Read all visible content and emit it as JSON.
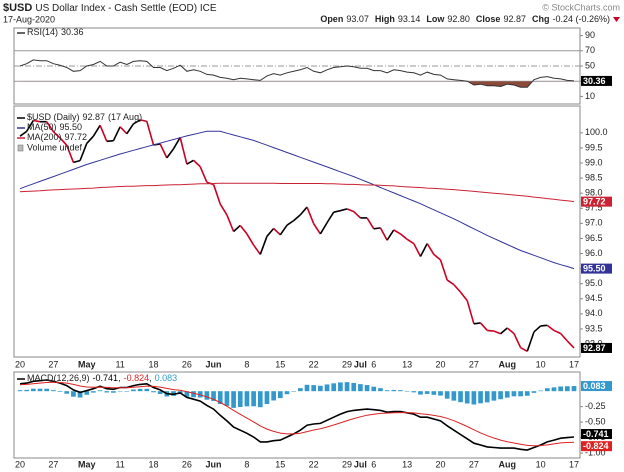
{
  "header": {
    "symbol": "$USD",
    "name": "US Dollar Index - Cash Settle (EOD) ICE",
    "date": "17-Aug-2020",
    "watermark": "© StockCharts.com",
    "quote": [
      {
        "label": "Open",
        "value": "93.07"
      },
      {
        "label": "High",
        "value": "93.14"
      },
      {
        "label": "Low",
        "value": "92.80"
      },
      {
        "label": "Close",
        "value": "92.87"
      },
      {
        "label": "Chg",
        "value": "-0.24 (-0.26%)"
      }
    ]
  },
  "chart_data": [
    {
      "type": "line",
      "ylim": [
        0,
        100
      ],
      "yticks": [
        10,
        30,
        50,
        70,
        90
      ],
      "levels": [
        {
          "value": 70
        },
        {
          "value": 50,
          "style": "dashdot"
        },
        {
          "value": 30
        }
      ],
      "oversold_color": "#8b4a3a",
      "series": [
        {
          "name": "RSI(14)",
          "color": "#333333",
          "values": [
            50,
            53,
            58,
            57,
            57,
            53,
            51,
            48,
            43,
            44,
            50,
            52,
            56,
            50,
            50,
            55,
            52,
            56,
            57,
            56,
            48,
            48,
            44,
            47,
            51,
            43,
            45,
            43,
            39,
            38,
            35,
            34,
            32,
            34,
            33,
            32,
            31,
            37,
            40,
            38,
            41,
            43,
            45,
            48,
            43,
            41,
            45,
            48,
            49,
            50,
            49,
            47,
            47,
            44,
            44,
            41,
            45,
            44,
            42,
            41,
            38,
            42,
            39,
            38,
            33,
            32,
            31,
            30,
            25,
            26,
            24,
            24,
            23,
            26,
            25,
            22,
            22,
            32,
            35,
            36,
            34,
            33,
            31,
            30.36
          ]
        }
      ]
    },
    {
      "type": "price",
      "ylim": [
        92.57,
        100.89
      ],
      "yticks": [
        {
          "value": 93,
          "label": "93.0"
        },
        93.5,
        {
          "value": 94,
          "label": "94.0"
        },
        94.5,
        {
          "value": 95,
          "label": "95.0"
        },
        95.5,
        {
          "value": 96,
          "label": "96.0"
        },
        96.5,
        {
          "value": 97,
          "label": "97.0"
        },
        97.5,
        {
          "value": 98,
          "label": "98.0"
        },
        98.5,
        {
          "value": 99,
          "label": "99.0"
        },
        99.5,
        {
          "value": 100,
          "label": "100.0"
        }
      ],
      "categories": [
        "20",
        null,
        null,
        null,
        null,
        "27",
        null,
        null,
        null,
        null,
        "May",
        null,
        null,
        null,
        null,
        "11",
        null,
        null,
        null,
        null,
        "18",
        null,
        null,
        null,
        null,
        "26",
        null,
        null,
        null,
        "Jun",
        null,
        null,
        null,
        null,
        "8",
        null,
        null,
        null,
        null,
        "15",
        null,
        null,
        null,
        null,
        "22",
        null,
        null,
        null,
        null,
        "29",
        null,
        "Jul",
        null,
        "6",
        null,
        null,
        null,
        null,
        "13",
        null,
        null,
        null,
        null,
        "20",
        null,
        null,
        null,
        null,
        "27",
        null,
        null,
        null,
        null,
        "Aug",
        null,
        null,
        null,
        null,
        "10",
        null,
        null,
        null,
        null,
        "17"
      ],
      "legend_note": "Volume undef",
      "series": [
        {
          "name": "$USD (Daily)",
          "legend_date": "(17 Aug)",
          "color": "#000000",
          "color_down": "#cc0022",
          "values": [
            99.89,
            100.05,
            100.41,
            100.37,
            100.37,
            100.04,
            99.83,
            99.59,
            99.02,
            99.08,
            99.65,
            99.89,
            100.25,
            99.72,
            99.74,
            100.2,
            99.97,
            100.3,
            100.43,
            100.38,
            99.6,
            99.63,
            99.17,
            99.47,
            99.85,
            98.96,
            99.09,
            98.88,
            98.36,
            98.29,
            97.64,
            97.28,
            96.73,
            96.93,
            96.65,
            96.28,
            95.97,
            96.57,
            96.83,
            96.62,
            96.94,
            97.09,
            97.28,
            97.54,
            96.99,
            96.65,
            97.02,
            97.37,
            97.42,
            97.48,
            97.39,
            97.18,
            97.18,
            96.82,
            96.85,
            96.44,
            96.78,
            96.65,
            96.47,
            96.33,
            95.9,
            96.33,
            95.97,
            95.79,
            95.12,
            94.97,
            94.72,
            94.44,
            93.67,
            93.7,
            93.45,
            93.43,
            93.34,
            93.53,
            93.35,
            92.88,
            92.76,
            93.4,
            93.6,
            93.62,
            93.45,
            93.35,
            93.1,
            92.87
          ]
        },
        {
          "name": "MA(50)",
          "color": "#333399",
          "last_label": "95.50",
          "values": [
            98.15,
            98.23,
            98.31,
            98.39,
            98.47,
            98.55,
            98.63,
            98.71,
            98.79,
            98.87,
            98.95,
            99.02,
            99.09,
            99.16,
            99.23,
            99.3,
            99.36,
            99.42,
            99.48,
            99.54,
            99.6,
            99.66,
            99.72,
            99.78,
            99.84,
            99.9,
            99.95,
            100.0,
            100.05,
            100.05,
            100.05,
            99.99,
            99.93,
            99.87,
            99.81,
            99.75,
            99.67,
            99.59,
            99.51,
            99.43,
            99.35,
            99.27,
            99.19,
            99.11,
            99.03,
            98.95,
            98.87,
            98.79,
            98.71,
            98.63,
            98.55,
            98.46,
            98.37,
            98.28,
            98.19,
            98.1,
            98.01,
            97.92,
            97.83,
            97.74,
            97.65,
            97.55,
            97.45,
            97.35,
            97.25,
            97.15,
            97.04,
            96.93,
            96.82,
            96.71,
            96.6,
            96.5,
            96.4,
            96.3,
            96.2,
            96.1,
            96.02,
            95.94,
            95.86,
            95.78,
            95.7,
            95.63,
            95.57,
            95.5
          ]
        },
        {
          "name": "MA(200)",
          "color": "#cc2233",
          "values": [
            98.05,
            98.06,
            98.07,
            98.08,
            98.1,
            98.11,
            98.12,
            98.13,
            98.14,
            98.15,
            98.16,
            98.17,
            98.19,
            98.2,
            98.21,
            98.22,
            98.23,
            98.23,
            98.24,
            98.25,
            98.25,
            98.26,
            98.27,
            98.28,
            98.28,
            98.29,
            98.3,
            98.31,
            98.31,
            98.32,
            98.33,
            98.33,
            98.33,
            98.33,
            98.33,
            98.33,
            98.33,
            98.33,
            98.33,
            98.32,
            98.32,
            98.32,
            98.32,
            98.32,
            98.32,
            98.32,
            98.31,
            98.31,
            98.3,
            98.29,
            98.29,
            98.28,
            98.27,
            98.27,
            98.26,
            98.25,
            98.24,
            98.22,
            98.21,
            98.2,
            98.19,
            98.17,
            98.16,
            98.15,
            98.13,
            98.12,
            98.1,
            98.08,
            98.06,
            98.04,
            98.02,
            98.0,
            97.98,
            97.96,
            97.94,
            97.92,
            97.9,
            97.87,
            97.85,
            97.82,
            97.8,
            97.77,
            97.75,
            97.72
          ]
        }
      ]
    },
    {
      "type": "macd",
      "ylim": [
        -1.08,
        0.31
      ],
      "yticks": [
        {
          "value": -1,
          "label": "-1.00"
        },
        {
          "value": -0.75,
          "label": "-0.75"
        },
        {
          "value": -0.5,
          "label": "-0.50"
        },
        {
          "value": -0.25,
          "label": "-0.25"
        }
      ],
      "legend_separator": ",",
      "series": [
        {
          "name": "MACD(12,26,9)",
          "color": "#000000",
          "values": [
            0.12,
            0.13,
            0.16,
            0.17,
            0.18,
            0.16,
            0.13,
            0.09,
            0.02,
            -0.02,
            0.01,
            0.04,
            0.08,
            0.04,
            0.03,
            0.06,
            0.06,
            0.09,
            0.11,
            0.12,
            0.06,
            0.02,
            -0.04,
            -0.05,
            -0.03,
            -0.1,
            -0.13,
            -0.16,
            -0.23,
            -0.29,
            -0.39,
            -0.48,
            -0.58,
            -0.63,
            -0.68,
            -0.74,
            -0.82,
            -0.82,
            -0.8,
            -0.79,
            -0.74,
            -0.69,
            -0.63,
            -0.55,
            -0.53,
            -0.52,
            -0.47,
            -0.42,
            -0.37,
            -0.33,
            -0.31,
            -0.3,
            -0.29,
            -0.3,
            -0.31,
            -0.34,
            -0.33,
            -0.33,
            -0.35,
            -0.37,
            -0.42,
            -0.42,
            -0.45,
            -0.48,
            -0.56,
            -0.63,
            -0.7,
            -0.77,
            -0.84,
            -0.87,
            -0.9,
            -0.91,
            -0.92,
            -0.92,
            -0.92,
            -0.94,
            -0.95,
            -0.91,
            -0.87,
            -0.82,
            -0.79,
            -0.76,
            -0.75,
            -0.741
          ]
        },
        {
          "color": "#dd2222",
          "values": [
            0.104,
            0.109,
            0.119,
            0.13,
            0.14,
            0.144,
            0.141,
            0.131,
            0.109,
            0.083,
            0.068,
            0.063,
            0.066,
            0.061,
            0.055,
            0.056,
            0.057,
            0.063,
            0.073,
            0.082,
            0.078,
            0.066,
            0.045,
            0.026,
            0.015,
            -0.008,
            -0.032,
            -0.058,
            -0.092,
            -0.132,
            -0.183,
            -0.243,
            -0.31,
            -0.374,
            -0.435,
            -0.496,
            -0.561,
            -0.613,
            -0.65,
            -0.678,
            -0.691,
            -0.691,
            -0.679,
            -0.653,
            -0.628,
            -0.607,
            -0.579,
            -0.547,
            -0.512,
            -0.476,
            -0.443,
            -0.414,
            -0.389,
            -0.372,
            -0.359,
            -0.355,
            -0.35,
            -0.346,
            -0.347,
            -0.351,
            -0.365,
            -0.376,
            -0.391,
            -0.409,
            -0.439,
            -0.477,
            -0.522,
            -0.571,
            -0.625,
            -0.674,
            -0.719,
            -0.757,
            -0.79,
            -0.816,
            -0.837,
            -0.857,
            -0.876,
            -0.883,
            -0.88,
            -0.868,
            -0.852,
            -0.836,
            -0.83,
            -0.824
          ]
        },
        {
          "color": "#3399cc",
          "bars": true,
          "values": [
            0.016,
            0.021,
            0.041,
            0.04,
            0.04,
            0.016,
            -0.011,
            -0.041,
            -0.089,
            -0.103,
            -0.058,
            -0.023,
            0.014,
            -0.021,
            -0.025,
            0.004,
            0.003,
            0.027,
            0.037,
            0.038,
            -0.018,
            -0.046,
            -0.085,
            -0.076,
            -0.045,
            -0.092,
            -0.098,
            -0.102,
            -0.138,
            -0.158,
            -0.207,
            -0.237,
            -0.27,
            -0.256,
            -0.245,
            -0.244,
            -0.259,
            -0.207,
            -0.15,
            -0.112,
            -0.049,
            0.001,
            0.049,
            0.103,
            0.098,
            0.087,
            0.109,
            0.127,
            0.142,
            0.146,
            0.133,
            0.114,
            0.099,
            0.072,
            0.049,
            0.015,
            0.02,
            0.016,
            -0.003,
            -0.019,
            -0.055,
            -0.044,
            -0.059,
            -0.071,
            -0.121,
            -0.153,
            -0.178,
            -0.199,
            -0.215,
            -0.196,
            -0.181,
            -0.153,
            -0.13,
            -0.104,
            -0.083,
            -0.083,
            -0.074,
            -0.027,
            0.01,
            0.048,
            0.062,
            0.076,
            0.08,
            0.083
          ]
        }
      ]
    }
  ]
}
